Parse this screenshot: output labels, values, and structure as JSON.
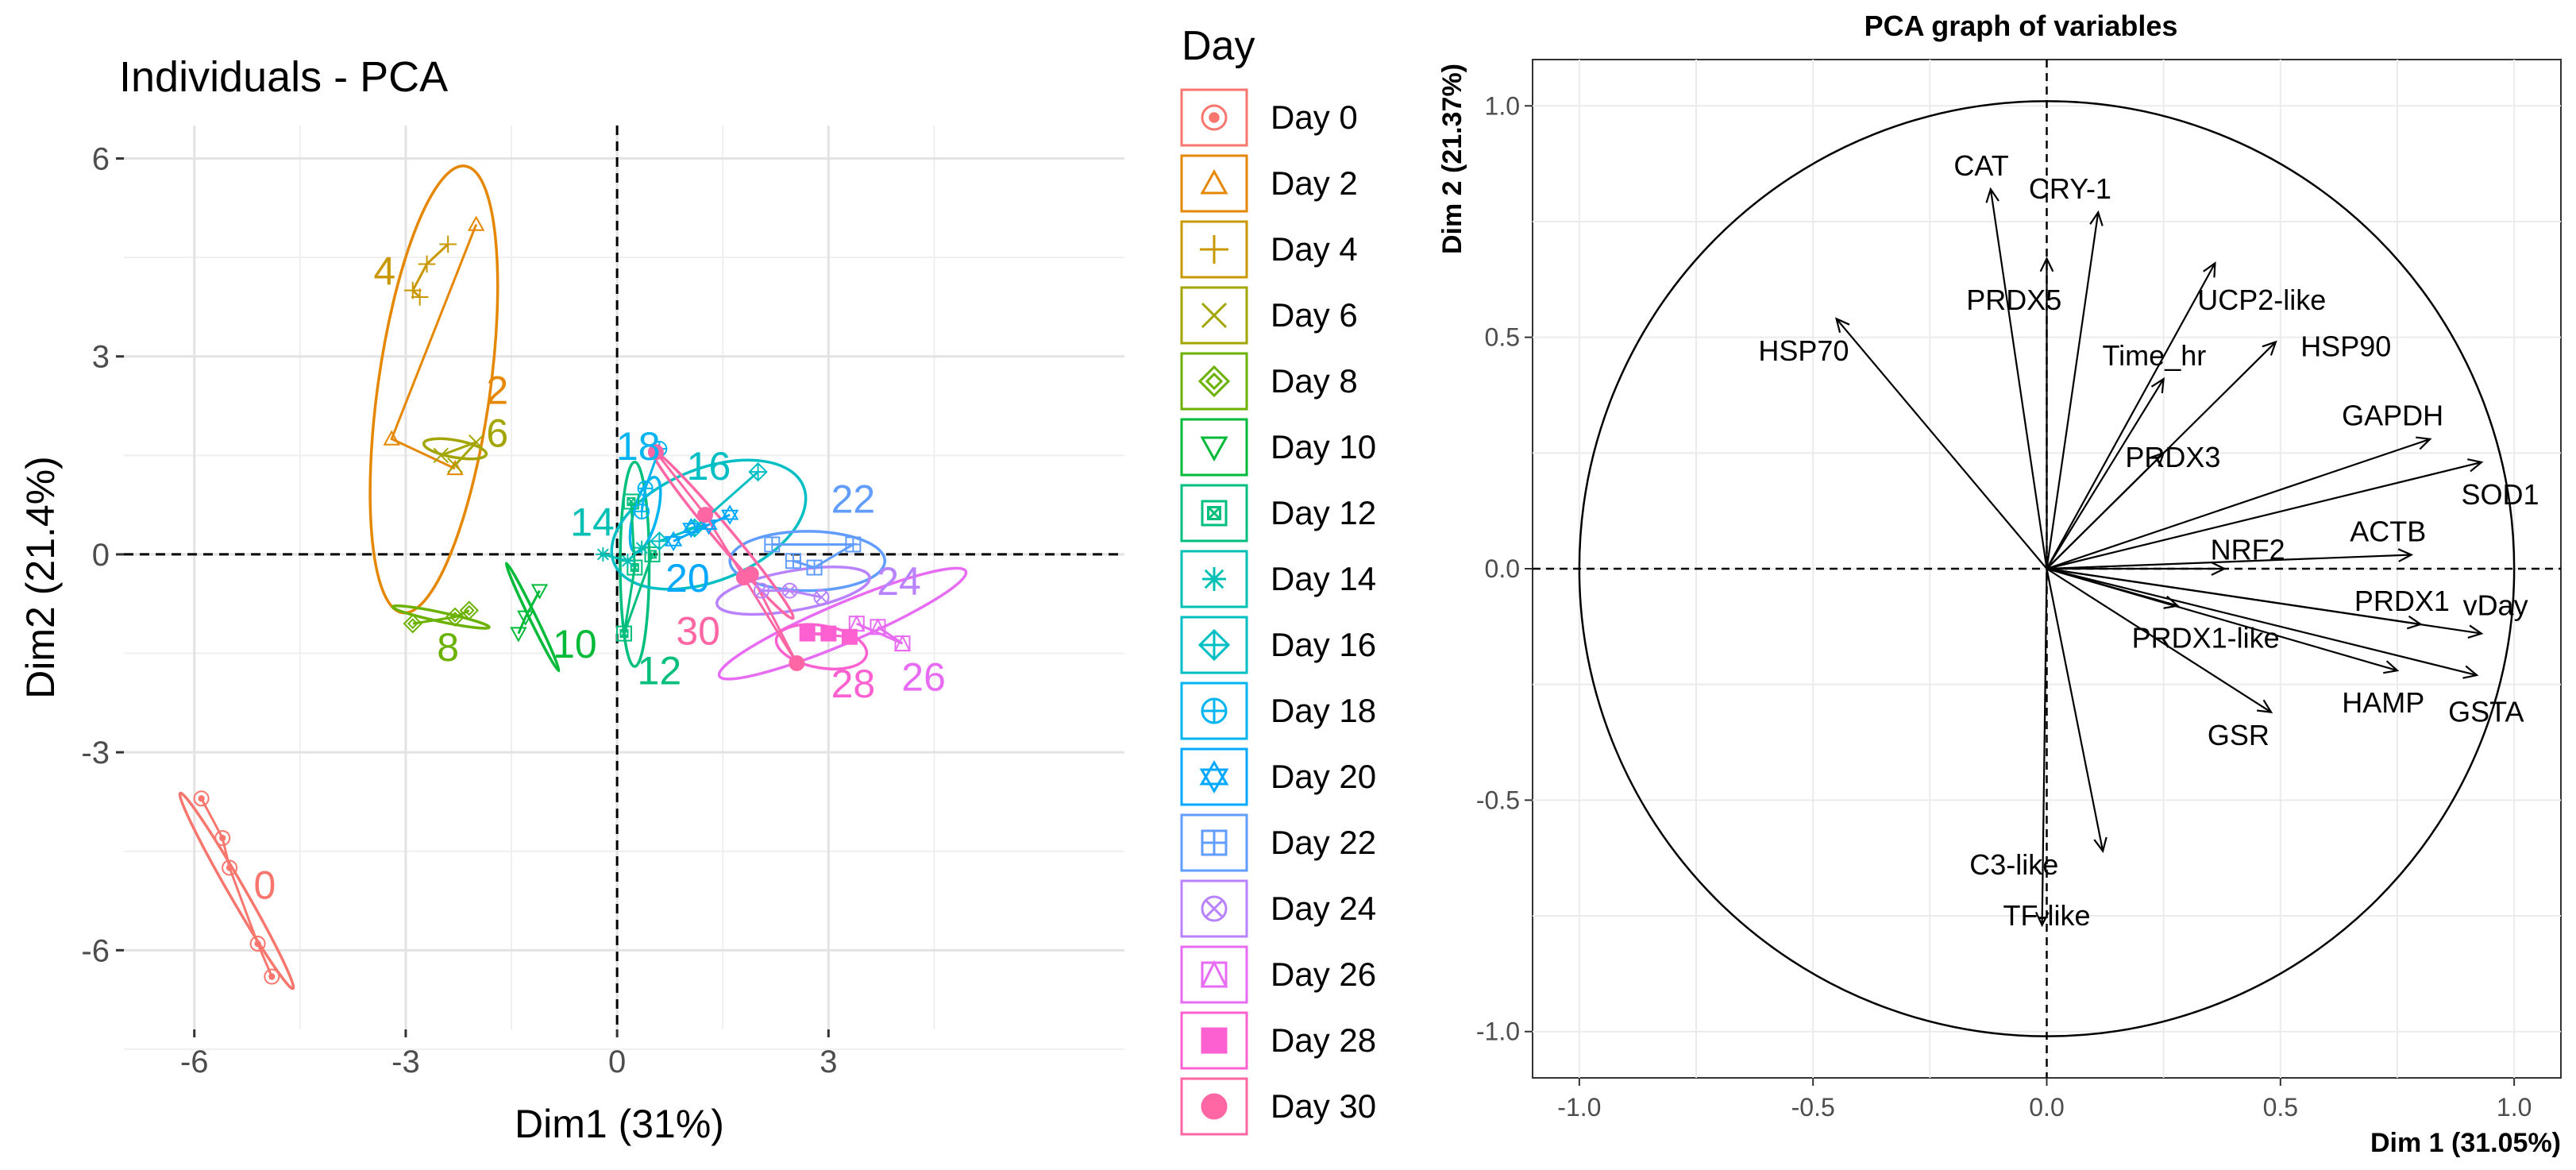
{
  "chart_data": [
    {
      "type": "scatter",
      "title": "Individuals - PCA",
      "xlabel": "Dim1 (31%)",
      "ylabel": "Dim2 (21.4%)",
      "xlim": [
        -7,
        7.2
      ],
      "ylim": [
        -7.2,
        6.5
      ],
      "xticks": [
        -6,
        -3,
        0,
        3
      ],
      "yticks": [
        -6,
        -3,
        0,
        3,
        6
      ],
      "grid": true,
      "legend_title": "Day",
      "legend_position": "right",
      "groups": [
        {
          "name": "Day 0",
          "label": "0",
          "color": "#F8766D",
          "marker": "circle-dot",
          "label_pos": [
            -5.0,
            -5.0
          ],
          "ellipse": {
            "cx": -5.4,
            "cy": -5.1,
            "rx": 1.6,
            "ry": 0.12,
            "angle": -60
          },
          "points": [
            [
              -5.9,
              -3.7
            ],
            [
              -5.6,
              -4.3
            ],
            [
              -5.5,
              -4.75
            ],
            [
              -5.1,
              -5.9
            ],
            [
              -4.9,
              -6.4
            ]
          ]
        },
        {
          "name": "Day 2",
          "label": "2",
          "color": "#E58700",
          "marker": "triangle",
          "label_pos": [
            -1.7,
            2.5
          ],
          "ellipse": {
            "cx": -2.6,
            "cy": 2.5,
            "rx": 3.2,
            "ry": 0.85,
            "angle": 82
          },
          "points": [
            [
              -2.0,
              5.0
            ],
            [
              -3.2,
              1.75
            ],
            [
              -2.3,
              1.3
            ]
          ]
        },
        {
          "name": "Day 4",
          "label": "4",
          "color": "#C99800",
          "marker": "plus",
          "label_pos": [
            -3.3,
            4.3
          ],
          "ellipse": null,
          "points": [
            [
              -2.4,
              4.7
            ],
            [
              -2.7,
              4.4
            ],
            [
              -2.9,
              4.0
            ],
            [
              -2.8,
              3.9
            ]
          ]
        },
        {
          "name": "Day 6",
          "label": "6",
          "color": "#A3A500",
          "marker": "cross",
          "label_pos": [
            -1.7,
            1.85
          ],
          "ellipse": {
            "cx": -2.3,
            "cy": 1.6,
            "rx": 0.45,
            "ry": 0.13,
            "angle": -10
          },
          "points": [
            [
              -2.5,
              1.5
            ],
            [
              -2.0,
              1.7
            ],
            [
              -2.3,
              1.35
            ]
          ]
        },
        {
          "name": "Day 8",
          "label": "8",
          "color": "#6BB100",
          "marker": "diamond",
          "label_pos": [
            -2.4,
            -1.4
          ],
          "ellipse": {
            "cx": -2.5,
            "cy": -0.95,
            "rx": 0.7,
            "ry": 0.07,
            "angle": -12
          },
          "points": [
            [
              -2.9,
              -1.05
            ],
            [
              -2.3,
              -0.95
            ],
            [
              -2.1,
              -0.85
            ]
          ]
        },
        {
          "name": "Day 10",
          "label": "10",
          "color": "#00BA38",
          "marker": "triangle-down",
          "label_pos": [
            -0.6,
            -1.35
          ],
          "ellipse": {
            "cx": -1.2,
            "cy": -0.95,
            "rx": 0.85,
            "ry": 0.05,
            "angle": -64
          },
          "points": [
            [
              -1.4,
              -1.2
            ],
            [
              -1.3,
              -0.95
            ],
            [
              -1.1,
              -0.55
            ]
          ]
        },
        {
          "name": "Day 12",
          "label": "12",
          "color": "#00BF7D",
          "marker": "boxed-cross",
          "label_pos": [
            0.6,
            -1.75
          ],
          "ellipse": {
            "cx": 0.25,
            "cy": -0.15,
            "rx": 1.45,
            "ry": 0.22,
            "angle": 90
          },
          "points": [
            [
              0.2,
              0.8
            ],
            [
              0.25,
              -0.2
            ],
            [
              0.1,
              -1.2
            ],
            [
              0.5,
              0.0
            ]
          ]
        },
        {
          "name": "Day 14",
          "label": "14",
          "color": "#00C0B5",
          "marker": "asterisk",
          "label_pos": [
            -0.35,
            0.5
          ],
          "ellipse": null,
          "points": [
            [
              -0.2,
              0.0
            ],
            [
              0.15,
              -0.1
            ],
            [
              0.35,
              0.1
            ]
          ]
        },
        {
          "name": "Day 16",
          "label": "16",
          "color": "#00BFC4",
          "marker": "diamond-plus",
          "label_pos": [
            1.3,
            1.35
          ],
          "ellipse": {
            "cx": 1.3,
            "cy": 0.45,
            "rx": 1.45,
            "ry": 0.85,
            "angle": 22
          },
          "points": [
            [
              2.0,
              1.25
            ],
            [
              1.1,
              0.4
            ],
            [
              0.6,
              0.2
            ]
          ]
        },
        {
          "name": "Day 18",
          "label": "18",
          "color": "#00B4F0",
          "marker": "circle-plus",
          "label_pos": [
            0.3,
            1.65
          ],
          "ellipse": {
            "cx": 0.4,
            "cy": 0.6,
            "rx": 0.55,
            "ry": 0.18,
            "angle": 75
          },
          "points": [
            [
              0.6,
              1.6
            ],
            [
              0.4,
              1.0
            ],
            [
              0.35,
              0.65
            ]
          ]
        },
        {
          "name": "Day 20",
          "label": "20",
          "color": "#00A9FF",
          "marker": "star-of-david",
          "label_pos": [
            1.0,
            -0.35
          ],
          "ellipse": null,
          "points": [
            [
              1.05,
              0.4
            ],
            [
              1.3,
              0.45
            ],
            [
              1.6,
              0.6
            ],
            [
              0.8,
              0.2
            ]
          ]
        },
        {
          "name": "Day 22",
          "label": "22",
          "color": "#619CFF",
          "marker": "square-plus",
          "label_pos": [
            3.35,
            0.85
          ],
          "ellipse": {
            "cx": 2.7,
            "cy": -0.1,
            "rx": 1.1,
            "ry": 0.45,
            "angle": 0
          },
          "points": [
            [
              2.2,
              0.15
            ],
            [
              3.35,
              0.15
            ],
            [
              2.8,
              -0.2
            ],
            [
              2.5,
              -0.1
            ]
          ]
        },
        {
          "name": "Day 24",
          "label": "24",
          "color": "#B983FF",
          "marker": "circle-x",
          "label_pos": [
            4.0,
            -0.4
          ],
          "ellipse": {
            "cx": 2.5,
            "cy": -0.55,
            "rx": 1.1,
            "ry": 0.3,
            "angle": 10
          },
          "points": [
            [
              2.05,
              -0.55
            ],
            [
              2.45,
              -0.55
            ],
            [
              2.9,
              -0.65
            ]
          ]
        },
        {
          "name": "Day 26",
          "label": "26",
          "color": "#E76BF3",
          "marker": "square-triangle",
          "label_pos": [
            4.35,
            -1.85
          ],
          "ellipse": {
            "cx": 3.2,
            "cy": -1.05,
            "rx": 1.9,
            "ry": 0.3,
            "angle": 23
          },
          "points": [
            [
              3.4,
              -1.05
            ],
            [
              4.05,
              -1.35
            ],
            [
              3.7,
              -1.1
            ]
          ]
        },
        {
          "name": "Day 28",
          "label": "28",
          "color": "#FD61D1",
          "marker": "square-filled",
          "label_pos": [
            3.35,
            -1.95
          ],
          "ellipse": {
            "cx": 2.9,
            "cy": -1.4,
            "rx": 0.65,
            "ry": 0.32,
            "angle": -10
          },
          "points": [
            [
              3.0,
              -1.2
            ],
            [
              2.7,
              -1.2
            ],
            [
              3.3,
              -1.25
            ]
          ]
        },
        {
          "name": "Day 30",
          "label": "30",
          "color": "#FF67A4",
          "marker": "circle-filled",
          "label_pos": [
            1.15,
            -1.15
          ],
          "ellipse": {
            "cx": 1.5,
            "cy": 0.3,
            "rx": 1.55,
            "ry": 0.13,
            "angle": -50
          },
          "points": [
            [
              0.55,
              1.55
            ],
            [
              1.25,
              0.6
            ],
            [
              1.8,
              -0.35
            ],
            [
              2.55,
              -1.65
            ],
            [
              1.9,
              -0.3
            ]
          ]
        }
      ]
    },
    {
      "type": "vector",
      "title": "PCA graph of variables",
      "xlabel": "Dim 1 (31.05%)",
      "ylabel": "Dim 2 (21.37%)",
      "xlim": [
        -1.1,
        1.1
      ],
      "ylim": [
        -1.1,
        1.1
      ],
      "xtick_labels": [
        "-1.0",
        "-0.5",
        "0.0",
        "0.5",
        "1.0"
      ],
      "ytick_labels": [
        "1.0",
        "0.5",
        "0.0",
        "-0.5",
        "-1.0"
      ],
      "grid": true,
      "variables": [
        {
          "name": "CAT",
          "x": -0.12,
          "y": 0.82,
          "label_x": -0.14,
          "label_y": 0.87
        },
        {
          "name": "CRY-1",
          "x": 0.11,
          "y": 0.77,
          "label_x": 0.05,
          "label_y": 0.82
        },
        {
          "name": "PRDX5",
          "x": 0.0,
          "y": 0.67,
          "label_x": -0.07,
          "label_y": 0.58
        },
        {
          "name": "UCP2-like",
          "x": 0.36,
          "y": 0.66,
          "label_x": 0.46,
          "label_y": 0.58
        },
        {
          "name": "HSP90",
          "x": 0.49,
          "y": 0.49,
          "label_x": 0.64,
          "label_y": 0.48
        },
        {
          "name": "Time_hr",
          "x": 0.25,
          "y": 0.41,
          "label_x": 0.23,
          "label_y": 0.46
        },
        {
          "name": "HSP70",
          "x": -0.45,
          "y": 0.54,
          "label_x": -0.52,
          "label_y": 0.47
        },
        {
          "name": "GAPDH",
          "x": 0.82,
          "y": 0.28,
          "label_x": 0.74,
          "label_y": 0.33
        },
        {
          "name": "PRDX3",
          "x": 0.25,
          "y": 0.25,
          "label_x": 0.27,
          "label_y": 0.24
        },
        {
          "name": "SOD1",
          "x": 0.93,
          "y": 0.23,
          "label_x": 0.97,
          "label_y": 0.16
        },
        {
          "name": "ACTB",
          "x": 0.78,
          "y": 0.03,
          "label_x": 0.73,
          "label_y": 0.08
        },
        {
          "name": "NRF2",
          "x": 0.38,
          "y": 0.0,
          "label_x": 0.43,
          "label_y": 0.04
        },
        {
          "name": "PRDX1",
          "x": 0.8,
          "y": -0.12,
          "label_x": 0.76,
          "label_y": -0.07
        },
        {
          "name": "vDay",
          "x": 0.93,
          "y": -0.14,
          "label_x": 0.96,
          "label_y": -0.08
        },
        {
          "name": "PRDX1-like",
          "x": 0.28,
          "y": -0.08,
          "label_x": 0.34,
          "label_y": -0.15
        },
        {
          "name": "HAMP",
          "x": 0.75,
          "y": -0.22,
          "label_x": 0.72,
          "label_y": -0.29
        },
        {
          "name": "GSTA",
          "x": 0.92,
          "y": -0.23,
          "label_x": 0.94,
          "label_y": -0.31
        },
        {
          "name": "GSR",
          "x": 0.48,
          "y": -0.31,
          "label_x": 0.41,
          "label_y": -0.36
        },
        {
          "name": "C3-like",
          "x": 0.12,
          "y": -0.61,
          "label_x": -0.07,
          "label_y": -0.64
        },
        {
          "name": "TF-like",
          "x": -0.01,
          "y": -0.77,
          "label_x": 0.0,
          "label_y": -0.75
        }
      ]
    }
  ]
}
